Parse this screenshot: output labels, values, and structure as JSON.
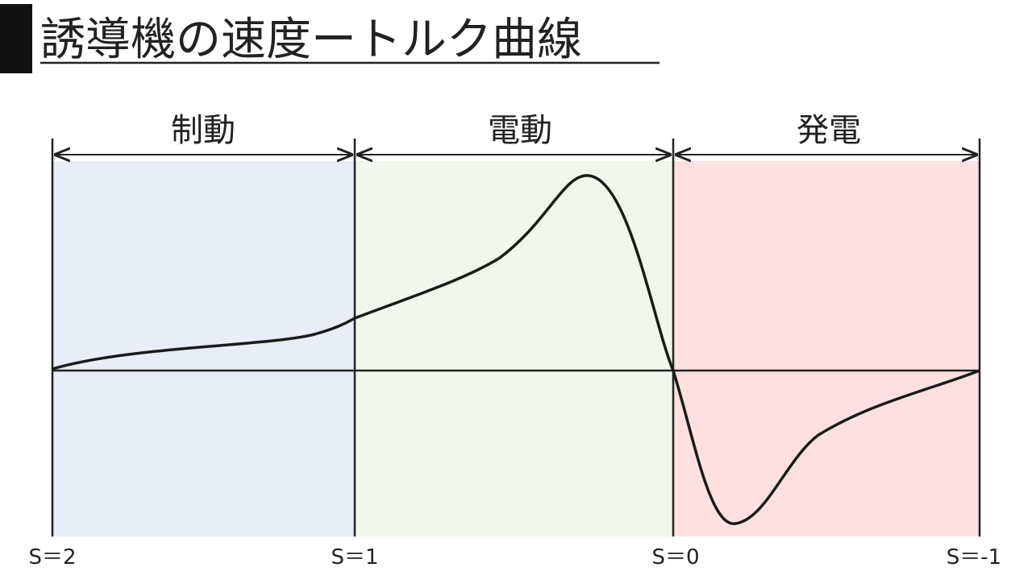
{
  "header": {
    "title": "誘導機の速度ートルク曲線"
  },
  "regions": [
    {
      "label": "制動"
    },
    {
      "label": "電動"
    },
    {
      "label": "発電"
    }
  ],
  "slip_labels": [
    "S＝2",
    "S＝1",
    "S＝0",
    "S＝-1"
  ]
}
